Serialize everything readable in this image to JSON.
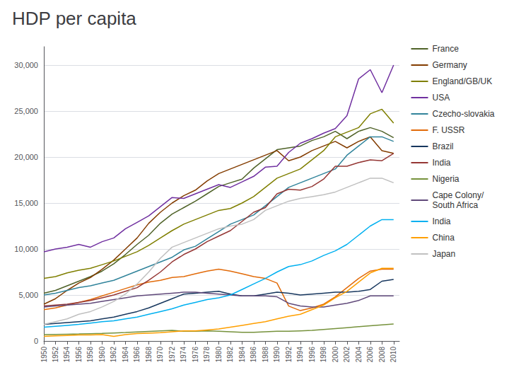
{
  "chart_data": {
    "type": "line",
    "title": "HDP per capita",
    "x": [
      1950,
      1952,
      1954,
      1956,
      1958,
      1960,
      1962,
      1964,
      1966,
      1968,
      1970,
      1972,
      1974,
      1976,
      1978,
      1980,
      1982,
      1984,
      1986,
      1988,
      1990,
      1992,
      1994,
      1996,
      1998,
      2000,
      2002,
      2004,
      2006,
      2008,
      2010
    ],
    "series": [
      {
        "name": "France",
        "color": "#4F6228",
        "values": [
          5200,
          5500,
          6000,
          6500,
          7000,
          7600,
          8400,
          9400,
          10500,
          11500,
          12800,
          13800,
          14500,
          15200,
          16000,
          16800,
          17200,
          17600,
          18800,
          19800,
          20800,
          21000,
          21200,
          21800,
          22200,
          22800,
          22000,
          22800,
          23200,
          22800,
          22100
        ]
      },
      {
        "name": "Germany",
        "color": "#833C00",
        "values": [
          4000,
          4600,
          5500,
          6300,
          6900,
          7800,
          8800,
          10000,
          11200,
          12800,
          14000,
          15000,
          15800,
          16400,
          17400,
          18200,
          18700,
          19200,
          19700,
          20200,
          20700,
          19600,
          20000,
          20700,
          21200,
          21700,
          21000,
          21700,
          22200,
          20700,
          20400
        ]
      },
      {
        "name": "England/GB/UK",
        "color": "#7F7F00",
        "values": [
          6800,
          7000,
          7400,
          7700,
          7900,
          8300,
          8700,
          9200,
          9700,
          10400,
          11200,
          12000,
          12700,
          13200,
          13700,
          14200,
          14400,
          15000,
          15700,
          16700,
          17700,
          18200,
          18700,
          19700,
          20700,
          22200,
          22700,
          23200,
          24700,
          25200,
          23700
        ]
      },
      {
        "name": "USA",
        "color": "#7030A0",
        "values": [
          9700,
          10000,
          10200,
          10500,
          10200,
          10800,
          11200,
          12200,
          12900,
          13600,
          14600,
          15600,
          15500,
          16000,
          16500,
          17000,
          16700,
          17300,
          17900,
          18900,
          19000,
          20500,
          21500,
          22000,
          22600,
          23100,
          24500,
          28500,
          29500,
          27000,
          30000
        ]
      },
      {
        "name": "Czecho-slovakia",
        "color": "#31849B",
        "values": [
          5000,
          5200,
          5500,
          5800,
          6000,
          6300,
          6600,
          7100,
          7600,
          8100,
          8600,
          9100,
          9900,
          10300,
          11100,
          11900,
          12700,
          13200,
          13700,
          14700,
          15700,
          16700,
          17200,
          17700,
          18200,
          18700,
          20200,
          21200,
          22200,
          22200,
          21700
        ]
      },
      {
        "name": "F. USSR",
        "color": "#E26B0A",
        "values": [
          3400,
          3600,
          3900,
          4200,
          4500,
          4900,
          5300,
          5700,
          6100,
          6400,
          6600,
          6900,
          7000,
          7300,
          7600,
          7800,
          7600,
          7300,
          7000,
          6800,
          6300,
          3800,
          3300,
          3600,
          4000,
          4800,
          5800,
          6800,
          7600,
          7800,
          7800
        ]
      },
      {
        "name": "Brazil",
        "color": "#17375E",
        "values": [
          1800,
          1900,
          2000,
          2100,
          2200,
          2400,
          2600,
          2900,
          3200,
          3600,
          4100,
          4600,
          5100,
          5200,
          5300,
          5400,
          5100,
          4900,
          4900,
          5100,
          5300,
          5200,
          5000,
          5100,
          5200,
          5300,
          5300,
          5400,
          5600,
          6500,
          6700
        ]
      },
      {
        "name": "India",
        "color": "#953735",
        "values": [
          3800,
          3900,
          4000,
          4200,
          4400,
          4700,
          5000,
          5400,
          5800,
          6600,
          7500,
          8600,
          9400,
          10000,
          10800,
          11400,
          12000,
          13000,
          14000,
          14500,
          16000,
          16500,
          16400,
          16800,
          17600,
          19000,
          19000,
          19400,
          19700,
          19600,
          20400
        ]
      },
      {
        "name": "Nigeria",
        "color": "#76923C",
        "values": [
          700,
          720,
          740,
          760,
          790,
          820,
          870,
          920,
          980,
          1040,
          1100,
          1150,
          1050,
          1050,
          1100,
          1050,
          1000,
          950,
          950,
          1000,
          1050,
          1050,
          1100,
          1150,
          1250,
          1350,
          1450,
          1550,
          1650,
          1750,
          1850
        ]
      },
      {
        "name": "Cape Colony/\nSouth Africa",
        "color": "#60497A",
        "values": [
          3700,
          3800,
          3900,
          4000,
          4100,
          4300,
          4500,
          4700,
          4900,
          5000,
          5100,
          5200,
          5300,
          5300,
          5200,
          5100,
          5000,
          4900,
          4900,
          4900,
          4800,
          4100,
          3800,
          3700,
          3700,
          3900,
          4100,
          4400,
          4900,
          4900,
          4900
        ]
      },
      {
        "name": "India",
        "color": "#00B0F0",
        "values": [
          1500,
          1600,
          1700,
          1800,
          1950,
          2100,
          2200,
          2400,
          2600,
          2900,
          3200,
          3500,
          3900,
          4200,
          4500,
          4700,
          5000,
          5600,
          6200,
          6800,
          7500,
          8100,
          8300,
          8700,
          9300,
          9800,
          10500,
          11500,
          12500,
          13200,
          13200
        ]
      },
      {
        "name": "China",
        "color": "#FF9F00",
        "values": [
          500,
          550,
          600,
          650,
          650,
          700,
          500,
          700,
          800,
          850,
          900,
          1000,
          1100,
          1100,
          1200,
          1300,
          1500,
          1700,
          1900,
          2100,
          2400,
          2700,
          2900,
          3400,
          3900,
          4700,
          5400,
          6400,
          7400,
          7900,
          7900
        ]
      },
      {
        "name": "Japan",
        "color": "#C0C0C0",
        "values": [
          1800,
          2100,
          2400,
          2900,
          3200,
          3700,
          4300,
          5100,
          6200,
          7500,
          9000,
          10200,
          10700,
          11200,
          11700,
          12200,
          12500,
          12700,
          13200,
          14200,
          14700,
          15200,
          15500,
          15700,
          15900,
          16200,
          16700,
          17200,
          17700,
          17700,
          17200
        ]
      }
    ],
    "xlim": [
      1950,
      2011
    ],
    "xticks": [
      1950,
      1952,
      1954,
      1956,
      1958,
      1960,
      1962,
      1964,
      1966,
      1968,
      1970,
      1972,
      1974,
      1976,
      1978,
      1980,
      1982,
      1984,
      1986,
      1988,
      1990,
      1992,
      1994,
      1996,
      1998,
      2000,
      2002,
      2004,
      2006,
      2008,
      2010
    ],
    "ylim": [
      0,
      32000
    ],
    "yticks": [
      0,
      {
        "value": 5000,
        "label": "5,000"
      },
      {
        "value": 10000,
        "label": "10,000"
      },
      {
        "value": 15000,
        "label": "15,000"
      },
      {
        "value": 20000,
        "label": "20,000"
      },
      {
        "value": 25000,
        "label": "25,000"
      },
      {
        "value": 30000,
        "label": "30,000"
      }
    ],
    "grid": "y",
    "legend": "right"
  }
}
